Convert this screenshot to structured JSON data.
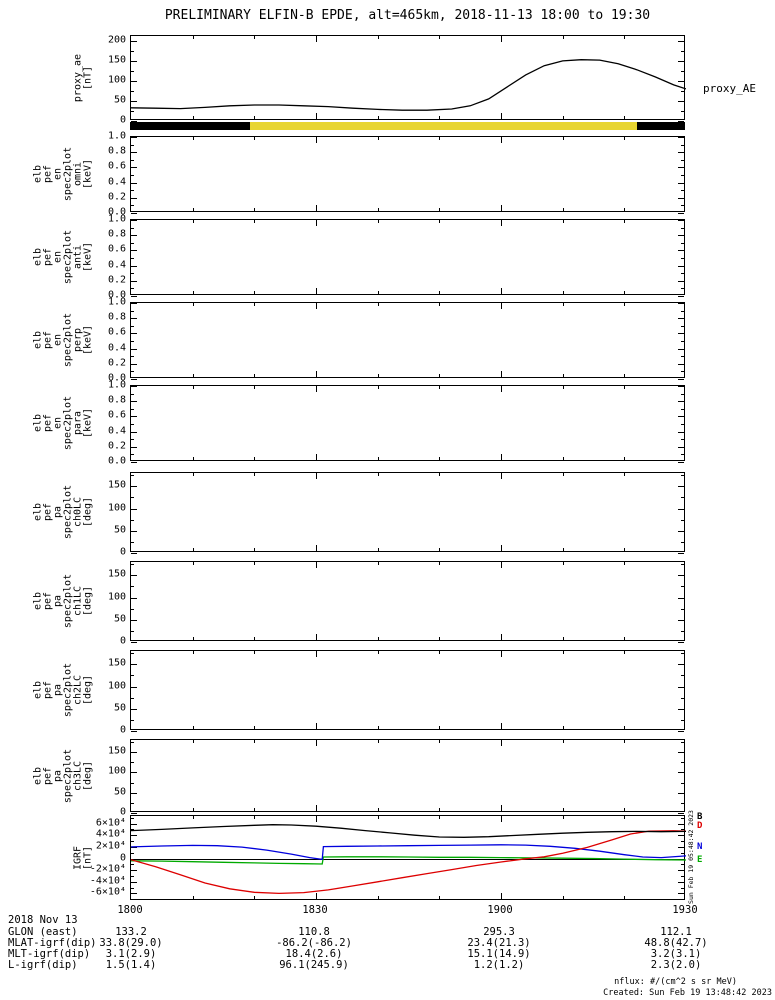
{
  "title": "PRELIMINARY ELFIN-B EPDE, alt=465km, 2018-11-13 18:00 to 19:30",
  "right_label": "proxy_AE",
  "sidebar_timestamp": "Sun Feb 19 05:48:42 2023",
  "colors": {
    "axis": "#000000",
    "sun_yellow": "#e8d532",
    "line_black": "#000000",
    "line_red": "#dd0000",
    "line_blue": "#0000dd",
    "line_green": "#00aa00"
  },
  "sun_bar": {
    "segments": [
      {
        "color": "#000000",
        "from": 0,
        "to": 0.216
      },
      {
        "color": "#e8d532",
        "from": 0.216,
        "to": 0.913
      },
      {
        "color": "#000000",
        "from": 0.913,
        "to": 1
      }
    ]
  },
  "legend": [
    {
      "label": "B",
      "color": "#000000"
    },
    {
      "label": "D",
      "color": "#dd0000"
    },
    {
      "label": "N",
      "color": "#0000dd"
    },
    {
      "label": "E",
      "color": "#00aa00"
    }
  ],
  "footer": {
    "date_label": "2018 Nov 13",
    "time_ticks": [
      "1800",
      "1830",
      "1900",
      "1930"
    ],
    "rows": [
      {
        "label": "GLON (east)",
        "values": [
          "133.2",
          "110.8",
          "295.3",
          "112.1"
        ]
      },
      {
        "label": "MLAT-igrf(dip)",
        "values": [
          "33.8(29.0)",
          "-86.2(-86.2)",
          "23.4(21.3)",
          "48.8(42.7)"
        ]
      },
      {
        "label": "MLT-igrf(dip)",
        "values": [
          "3.1(2.9)",
          "18.4(2.6)",
          "15.1(14.9)",
          "3.2(3.1)"
        ]
      },
      {
        "label": "L-igrf(dip)",
        "values": [
          "1.5(1.4)",
          "96.1(245.9)",
          "1.2(1.2)",
          "2.3(2.0)"
        ]
      }
    ],
    "nflux": "nflux: #/(cm^2 s sr MeV)",
    "created": "Created: Sun Feb 19 13:48:42 2023"
  },
  "time_axis": {
    "xlim": [
      0,
      90
    ],
    "xticks": [
      0,
      30,
      60,
      90
    ],
    "xminor": 10,
    "unit": "minutes after 2018-11-13/18:00 UT"
  },
  "chart_data": [
    {
      "name": "proxy_ae",
      "type": "line",
      "ylabel_lines": [
        "proxy_ae",
        "[nT]"
      ],
      "ylim": [
        0,
        212
      ],
      "yminor": 25,
      "yticks": [
        [
          0,
          "0"
        ],
        [
          50,
          "50"
        ],
        [
          100,
          "100"
        ],
        [
          150,
          "150"
        ],
        [
          200,
          "200"
        ]
      ],
      "zeroline": false,
      "series": [
        {
          "name": "proxy_AE",
          "color": "#000000",
          "x": [
            0,
            4,
            8,
            12,
            16,
            20,
            24,
            28,
            32,
            36,
            40,
            44,
            48,
            52,
            55,
            58,
            61,
            64,
            67,
            70,
            73,
            76,
            79,
            82,
            85,
            88,
            90
          ],
          "y": [
            33,
            32,
            31,
            34,
            38,
            40,
            40,
            38,
            36,
            32,
            29,
            27,
            27,
            30,
            38,
            55,
            85,
            115,
            138,
            150,
            153,
            152,
            143,
            128,
            110,
            90,
            80
          ]
        }
      ]
    },
    {
      "name": "en-spec2plot-omni",
      "type": "spectrogram",
      "ylabel_lines": [
        "elb",
        "pef",
        "en",
        "spec2plot",
        "omni",
        "[keV]"
      ],
      "ylim": [
        0,
        1
      ],
      "yminor": 0.1,
      "yticks": [
        [
          0,
          "0.0"
        ],
        [
          0.2,
          "0.2"
        ],
        [
          0.4,
          "0.4"
        ],
        [
          0.6,
          "0.6"
        ],
        [
          0.8,
          "0.8"
        ],
        [
          1,
          "1.0"
        ]
      ],
      "zeroline": false,
      "series": []
    },
    {
      "name": "en-spec2plot-anti",
      "type": "spectrogram",
      "ylabel_lines": [
        "elb",
        "pef",
        "en",
        "spec2plot",
        "anti",
        "[keV]"
      ],
      "ylim": [
        0,
        1
      ],
      "yminor": 0.1,
      "yticks": [
        [
          0,
          "0.0"
        ],
        [
          0.2,
          "0.2"
        ],
        [
          0.4,
          "0.4"
        ],
        [
          0.6,
          "0.6"
        ],
        [
          0.8,
          "0.8"
        ],
        [
          1,
          "1.0"
        ]
      ],
      "zeroline": false,
      "series": []
    },
    {
      "name": "en-spec2plot-perp",
      "type": "spectrogram",
      "ylabel_lines": [
        "elb",
        "pef",
        "en",
        "spec2plot",
        "perp",
        "[keV]"
      ],
      "ylim": [
        0,
        1
      ],
      "yminor": 0.1,
      "yticks": [
        [
          0,
          "0.0"
        ],
        [
          0.2,
          "0.2"
        ],
        [
          0.4,
          "0.4"
        ],
        [
          0.6,
          "0.6"
        ],
        [
          0.8,
          "0.8"
        ],
        [
          1,
          "1.0"
        ]
      ],
      "zeroline": false,
      "series": []
    },
    {
      "name": "en-spec2plot-para",
      "type": "spectrogram",
      "ylabel_lines": [
        "elb",
        "pef",
        "en",
        "spec2plot",
        "para",
        "[keV]"
      ],
      "ylim": [
        0,
        1
      ],
      "yminor": 0.1,
      "yticks": [
        [
          0,
          "0.0"
        ],
        [
          0.2,
          "0.2"
        ],
        [
          0.4,
          "0.4"
        ],
        [
          0.6,
          "0.6"
        ],
        [
          0.8,
          "0.8"
        ],
        [
          1,
          "1.0"
        ]
      ],
      "zeroline": false,
      "series": []
    },
    {
      "name": "pa-spec2plot-ch0LC",
      "type": "spectrogram",
      "ylabel_lines": [
        "elb",
        "pef",
        "pa",
        "spec2plot",
        "ch0LC",
        "[deg]"
      ],
      "ylim": [
        0,
        180
      ],
      "yminor": 25,
      "yticks": [
        [
          0,
          "0"
        ],
        [
          50,
          "50"
        ],
        [
          100,
          "100"
        ],
        [
          150,
          "150"
        ]
      ],
      "zeroline": false,
      "series": []
    },
    {
      "name": "pa-spec2plot-ch1LC",
      "type": "spectrogram",
      "ylabel_lines": [
        "elb",
        "pef",
        "pa",
        "spec2plot",
        "ch1LC",
        "[deg]"
      ],
      "ylim": [
        0,
        180
      ],
      "yminor": 25,
      "yticks": [
        [
          0,
          "0"
        ],
        [
          50,
          "50"
        ],
        [
          100,
          "100"
        ],
        [
          150,
          "150"
        ]
      ],
      "zeroline": false,
      "series": []
    },
    {
      "name": "pa-spec2plot-ch2LC",
      "type": "spectrogram",
      "ylabel_lines": [
        "elb",
        "pef",
        "pa",
        "spec2plot",
        "ch2LC",
        "[deg]"
      ],
      "ylim": [
        0,
        180
      ],
      "yminor": 25,
      "yticks": [
        [
          0,
          "0"
        ],
        [
          50,
          "50"
        ],
        [
          100,
          "100"
        ],
        [
          150,
          "150"
        ]
      ],
      "zeroline": false,
      "series": []
    },
    {
      "name": "pa-spec2plot-ch3LC",
      "type": "spectrogram",
      "ylabel_lines": [
        "elb",
        "pef",
        "pa",
        "spec2plot",
        "ch3LC",
        "[deg]"
      ],
      "ylim": [
        0,
        180
      ],
      "yminor": 25,
      "yticks": [
        [
          0,
          "0"
        ],
        [
          50,
          "50"
        ],
        [
          100,
          "100"
        ],
        [
          150,
          "150"
        ]
      ],
      "zeroline": false,
      "series": []
    },
    {
      "name": "igrf",
      "type": "line",
      "ylabel_lines": [
        "IGRF",
        "[nT]"
      ],
      "ylim": [
        -73000,
        73000
      ],
      "yminor": 10000,
      "yticks": [
        [
          -60000,
          "-6×10⁴"
        ],
        [
          -40000,
          "-4×10⁴"
        ],
        [
          -20000,
          "-2×10⁴"
        ],
        [
          0,
          "0"
        ],
        [
          20000,
          "2×10⁴"
        ],
        [
          40000,
          "4×10⁴"
        ],
        [
          60000,
          "6×10⁴"
        ]
      ],
      "zeroline": true,
      "series": [
        {
          "name": "E",
          "color": "#00aa00",
          "x": [
            0,
            5,
            10,
            15,
            20,
            24,
            28,
            31,
            31.2,
            35,
            40,
            45,
            50,
            55,
            60,
            65,
            70,
            75,
            80,
            85,
            90
          ],
          "y": [
            -4000,
            -4500,
            -5500,
            -6500,
            -7500,
            -8500,
            -9000,
            -9500,
            2500,
            3000,
            3000,
            2500,
            2000,
            2000,
            1500,
            1000,
            500,
            0,
            -1000,
            -2000,
            -2500
          ]
        },
        {
          "name": "N",
          "color": "#0000dd",
          "x": [
            0,
            5,
            10,
            14,
            18,
            22,
            26,
            29,
            31,
            31.2,
            35,
            40,
            45,
            50,
            55,
            60,
            64,
            68,
            72,
            76,
            80,
            83,
            86,
            90
          ],
          "y": [
            20000,
            21500,
            22500,
            22000,
            19500,
            14500,
            7500,
            1500,
            -1500,
            20500,
            21000,
            21500,
            22000,
            22500,
            23000,
            23500,
            23000,
            21000,
            17500,
            12500,
            6500,
            2500,
            1500,
            4500
          ]
        },
        {
          "name": "D",
          "color": "#dd0000",
          "x": [
            0,
            4,
            8,
            12,
            16,
            20,
            24,
            28,
            32,
            36,
            40,
            44,
            48,
            52,
            56,
            60,
            64,
            67,
            70,
            74,
            78,
            81,
            84,
            88,
            90
          ],
          "y": [
            -2000,
            -14000,
            -28000,
            -42000,
            -52000,
            -58000,
            -60000,
            -58500,
            -54000,
            -47000,
            -40000,
            -33000,
            -26000,
            -19000,
            -12000,
            -6000,
            -500,
            3000,
            9000,
            19000,
            32000,
            42000,
            47000,
            47500,
            47000
          ]
        },
        {
          "name": "B",
          "color": "#000000",
          "x": [
            0,
            5,
            10,
            15,
            20,
            23,
            26,
            30,
            34,
            38,
            42,
            46,
            50,
            54,
            58,
            62,
            66,
            70,
            74,
            78,
            82,
            86,
            90
          ],
          "y": [
            48000,
            50000,
            52500,
            55000,
            57000,
            58000,
            57500,
            55500,
            52000,
            48000,
            44000,
            40000,
            37000,
            36500,
            37500,
            39500,
            41500,
            43500,
            45000,
            46000,
            46500,
            46000,
            46500
          ]
        }
      ]
    }
  ]
}
